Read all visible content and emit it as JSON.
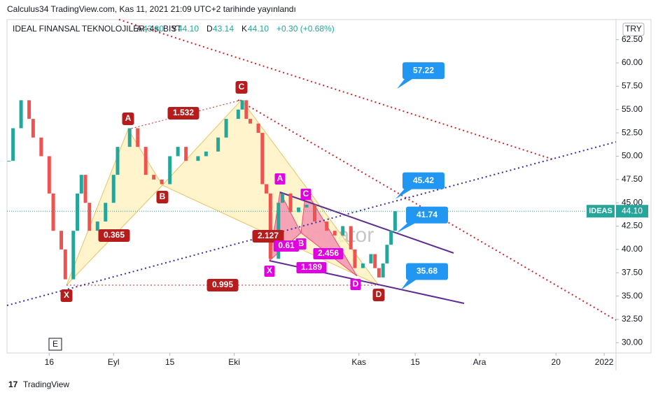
{
  "header": {
    "published": "Calculus34 TradingView.com, Kas 11, 2021 21:09 UTC+2 tarihinde yayınlandı",
    "symbol": "IDEAL FINANSAL TEKNOLOJILER, 4s, BIST",
    "ohlc": [
      {
        "key": "A",
        "value": "43.80"
      },
      {
        "key": "Y",
        "value": "44.10"
      },
      {
        "key": "D",
        "value": "43.14"
      },
      {
        "key": "K",
        "value": "44.10"
      }
    ],
    "change": "+0.30 (+0.68%)",
    "currency": "TRY"
  },
  "chart_data": {
    "type": "candlestick",
    "x": [
      5,
      6,
      8,
      10,
      11,
      13,
      15,
      16,
      18,
      19,
      21,
      22,
      23,
      24,
      25,
      27,
      29,
      31,
      32,
      35,
      37,
      39,
      41,
      43,
      45,
      47,
      49,
      52,
      54,
      57,
      59,
      62,
      63,
      64,
      65,
      67,
      68,
      69,
      70,
      72,
      73,
      75,
      77,
      79,
      81,
      84,
      86,
      88,
      90,
      91,
      93,
      95,
      96,
      97,
      98,
      99,
      100,
      101
    ],
    "values": [
      49.5,
      53,
      56,
      54,
      52,
      50,
      46,
      42,
      40,
      36.8,
      42,
      46,
      48,
      45,
      42,
      43,
      45,
      48,
      51,
      53,
      51,
      48,
      47.5,
      47,
      50,
      51,
      49.5,
      50,
      50.5,
      52,
      54,
      55,
      56,
      54,
      53.5,
      52.5,
      47,
      46,
      39,
      45,
      46,
      44,
      44.5,
      44.8,
      43,
      42,
      41.5,
      42.5,
      40,
      38,
      38.5,
      39.5,
      38,
      37,
      38.5,
      40.5,
      42,
      44.1
    ],
    "up_color": "#26a69a",
    "down_color": "#ef5350",
    "xlim": [
      4.5,
      157.5
    ],
    "xticks": [
      {
        "value": 15,
        "label": "16"
      },
      {
        "value": 31,
        "label": "Eyl"
      },
      {
        "value": 45,
        "label": "15"
      },
      {
        "value": 61,
        "label": "Eki"
      },
      {
        "value": 92,
        "label": "Kas"
      },
      {
        "value": 106,
        "label": "15"
      },
      {
        "value": 122,
        "label": "Ara"
      },
      {
        "value": 141,
        "label": "20"
      },
      {
        "value": 153,
        "label": "2022"
      }
    ],
    "ylim": [
      28.9,
      64.5
    ],
    "yticks": [
      {
        "value": 30,
        "label": "30.00"
      },
      {
        "value": 32.5,
        "label": "32.50"
      },
      {
        "value": 35,
        "label": "35.00"
      },
      {
        "value": 37.5,
        "label": "37.50"
      },
      {
        "value": 40,
        "label": "40.00"
      },
      {
        "value": 42.5,
        "label": "42.50"
      },
      {
        "value": 45,
        "label": "45.00"
      },
      {
        "value": 47.5,
        "label": "47.50"
      },
      {
        "value": 50,
        "label": "50.00"
      },
      {
        "value": 52.5,
        "label": "52.50"
      },
      {
        "value": 55,
        "label": "55.00"
      },
      {
        "value": 57.5,
        "label": "57.50"
      },
      {
        "value": 60,
        "label": "60.00"
      },
      {
        "value": 62.5,
        "label": "62.50"
      }
    ],
    "last_price": {
      "name": "IDEAS",
      "value": 44.1,
      "label": "44.10"
    },
    "price_targets": [
      57.22,
      45.42,
      41.74,
      35.68
    ],
    "pattern_labels": [
      "A",
      "B",
      "C",
      "X",
      "D",
      "1.532",
      "0.365",
      "0.995",
      "2.127"
    ],
    "small_pattern_labels": [
      "A",
      "C",
      "B",
      "X",
      "D",
      "0.61",
      "1.189",
      "2.456"
    ]
  },
  "watermark": "calculator",
  "button": "E",
  "footer": "TradingView"
}
